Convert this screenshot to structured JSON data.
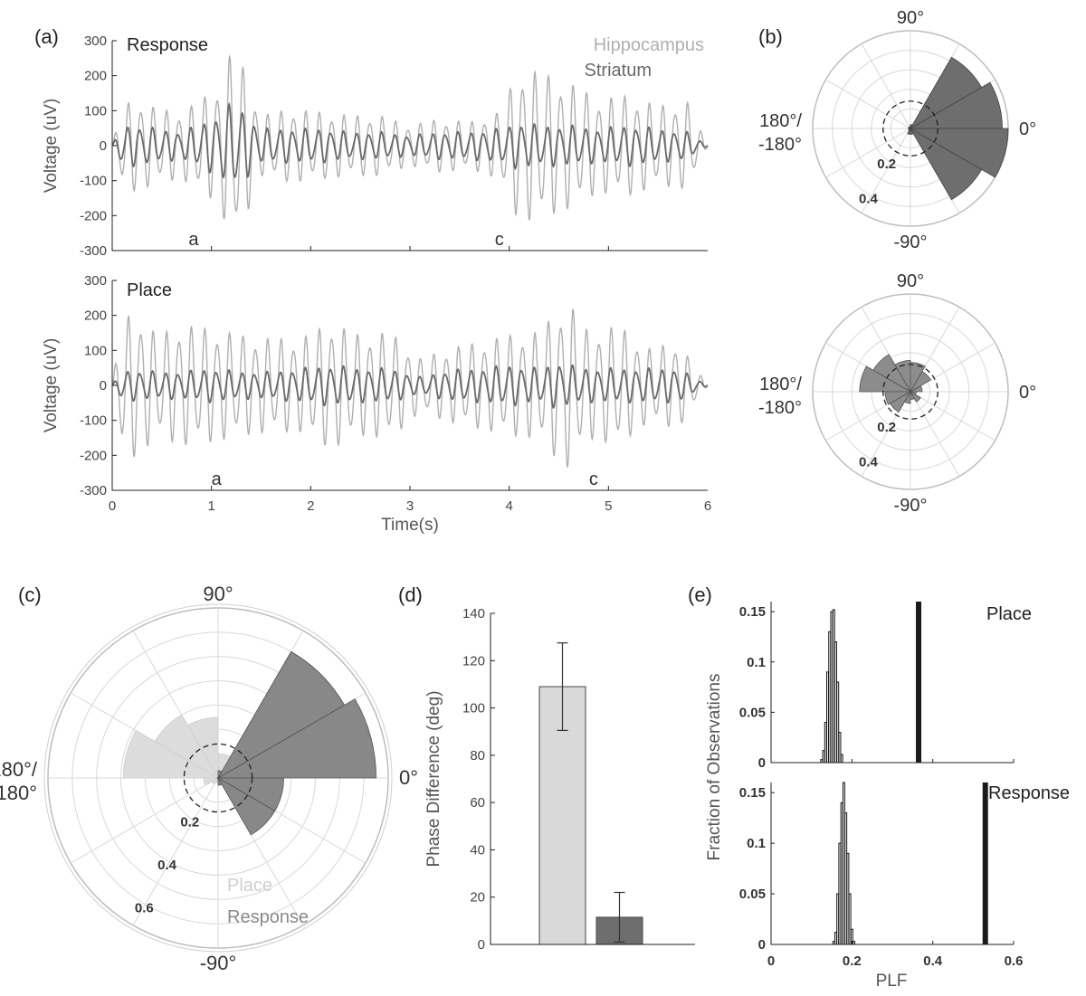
{
  "panel_labels": {
    "a": "(a)",
    "b": "(b)",
    "c": "(c)",
    "d": "(d)",
    "e": "(e)"
  },
  "colors": {
    "hippocampus": "#b0b0b0",
    "striatum": "#6a6a6a",
    "place": "#d9d9d9",
    "response": "#6e6e6e",
    "bars": "#1a1a1a"
  },
  "chart_data": [
    {
      "id": "a-response",
      "type": "line",
      "title": "Response",
      "ylabel": "Voltage (uV)",
      "xlim": [
        0,
        6
      ],
      "ylim": [
        -300,
        300
      ],
      "yticks": [
        300,
        200,
        100,
        0,
        -100,
        -200,
        -300
      ],
      "yticklabels": [
        "300",
        "200",
        "100",
        "0",
        "-100",
        "-200",
        "-300"
      ],
      "series": [
        {
          "name": "Hippocampus",
          "x": [
            0,
            0.1,
            0.25,
            0.45,
            0.7,
            1.0,
            1.1,
            1.2,
            1.3,
            1.5,
            1.8,
            2.1,
            2.4,
            2.7,
            3.0,
            3.3,
            3.6,
            3.9,
            4.1,
            4.3,
            4.6,
            4.9,
            5.2,
            5.5,
            5.8,
            6.0
          ],
          "values": [
            0,
            120,
            -140,
            110,
            -100,
            160,
            -200,
            285,
            -250,
            90,
            110,
            -100,
            90,
            -90,
            60,
            80,
            -70,
            100,
            230,
            -220,
            190,
            -140,
            150,
            -120,
            130,
            0
          ]
        },
        {
          "name": "Striatum",
          "x": [
            0,
            0.1,
            0.25,
            0.45,
            0.7,
            1.0,
            1.1,
            1.2,
            1.3,
            1.5,
            1.8,
            2.1,
            2.4,
            2.7,
            3.0,
            3.3,
            3.6,
            3.9,
            4.1,
            4.3,
            4.6,
            4.9,
            5.2,
            5.5,
            5.8,
            6.0
          ],
          "values": [
            0,
            60,
            -60,
            50,
            -40,
            80,
            -100,
            125,
            -110,
            50,
            50,
            -50,
            40,
            -40,
            30,
            40,
            -40,
            50,
            70,
            -60,
            60,
            -50,
            60,
            -50,
            40,
            0
          ]
        }
      ],
      "annotations": [
        {
          "text": "a",
          "x": 0.82
        },
        {
          "text": "c",
          "x": 3.9
        }
      ]
    },
    {
      "id": "a-place",
      "type": "line",
      "title": "Place",
      "ylabel": "Voltage (uV)",
      "xlabel": "Time(s)",
      "xlim": [
        0,
        6
      ],
      "ylim": [
        -300,
        300
      ],
      "xticks": [
        0,
        1,
        2,
        3,
        4,
        5,
        6
      ],
      "xticklabels": [
        "0",
        "1",
        "2",
        "3",
        "4",
        "5",
        "6"
      ],
      "yticks": [
        300,
        200,
        100,
        0,
        -100,
        -200,
        -300
      ],
      "yticklabels": [
        "300",
        "200",
        "100",
        "0",
        "-100",
        "-200",
        "-300"
      ],
      "series": [
        {
          "name": "Hippocampus",
          "x": [
            0,
            0.1,
            0.25,
            0.45,
            0.7,
            1.0,
            1.3,
            1.6,
            1.9,
            2.2,
            2.5,
            2.8,
            3.1,
            3.4,
            3.7,
            4.0,
            4.3,
            4.5,
            4.6,
            4.8,
            5.1,
            5.4,
            5.7,
            6.0
          ],
          "values": [
            0,
            200,
            -220,
            150,
            -180,
            170,
            -150,
            140,
            -140,
            190,
            -150,
            160,
            -80,
            110,
            -130,
            150,
            -160,
            230,
            -250,
            160,
            -180,
            110,
            -130,
            0
          ]
        },
        {
          "name": "Striatum",
          "x": [
            0,
            0.1,
            0.25,
            0.45,
            0.7,
            1.0,
            1.3,
            1.6,
            1.9,
            2.2,
            2.5,
            2.8,
            3.1,
            3.4,
            3.7,
            4.0,
            4.3,
            4.5,
            4.6,
            4.8,
            5.1,
            5.4,
            5.7,
            6.0
          ],
          "values": [
            0,
            45,
            -45,
            40,
            -40,
            50,
            -40,
            40,
            -50,
            60,
            -50,
            50,
            -25,
            45,
            -50,
            60,
            -50,
            70,
            -60,
            50,
            -50,
            50,
            -50,
            0
          ]
        }
      ],
      "annotations": [
        {
          "text": "a",
          "x": 1.05
        },
        {
          "text": "c",
          "x": 4.85
        }
      ]
    },
    {
      "id": "b-response",
      "type": "polar-histogram",
      "theta_labels": {
        "top": "90°",
        "right": "0°",
        "left_1": "180°/",
        "left_2": "-180°",
        "bottom": "-90°"
      },
      "r_labels": [
        "0.2",
        "0.4"
      ],
      "rmax": 0.5,
      "bins": [
        {
          "from": -60,
          "to": -30,
          "r": 0.42
        },
        {
          "from": -30,
          "to": 0,
          "r": 0.5
        },
        {
          "from": 0,
          "to": 30,
          "r": 0.47
        },
        {
          "from": 30,
          "to": 60,
          "r": 0.42
        },
        {
          "from": 60,
          "to": 90,
          "r": 0.02
        },
        {
          "from": 120,
          "to": 150,
          "r": 0.01
        },
        {
          "from": 150,
          "to": 180,
          "r": 0.01
        },
        {
          "from": -180,
          "to": -150,
          "r": 0.01
        },
        {
          "from": -150,
          "to": -120,
          "r": 0.01
        },
        {
          "from": -120,
          "to": -90,
          "r": 0.03
        },
        {
          "from": -90,
          "to": -60,
          "r": 0.03
        }
      ],
      "threshold_r": 0.14
    },
    {
      "id": "b-place",
      "type": "polar-histogram",
      "theta_labels": {
        "top": "90°",
        "right": "0°",
        "left_1": "180°/",
        "left_2": "-180°",
        "bottom": "-90°"
      },
      "r_labels": [
        "0.2",
        "0.4"
      ],
      "rmax": 0.5,
      "bins": [
        {
          "from": -30,
          "to": 0,
          "r": 0.03
        },
        {
          "from": 0,
          "to": 30,
          "r": 0.06
        },
        {
          "from": 30,
          "to": 60,
          "r": 0.12
        },
        {
          "from": 60,
          "to": 90,
          "r": 0.15
        },
        {
          "from": 90,
          "to": 120,
          "r": 0.16
        },
        {
          "from": 120,
          "to": 150,
          "r": 0.22
        },
        {
          "from": 150,
          "to": 180,
          "r": 0.26
        },
        {
          "from": -180,
          "to": -150,
          "r": 0.13
        },
        {
          "from": -150,
          "to": -120,
          "r": 0.12
        },
        {
          "from": -120,
          "to": -90,
          "r": 0.06
        },
        {
          "from": -90,
          "to": -60,
          "r": 0.04
        },
        {
          "from": -60,
          "to": -30,
          "r": 0.06
        }
      ],
      "threshold_r": 0.14
    },
    {
      "id": "c",
      "type": "polar-histogram",
      "theta_labels": {
        "top": "90°",
        "right": "0°",
        "left_1": "180°/",
        "left_2": "-180°",
        "bottom": "-90°"
      },
      "r_labels": [
        "0.2",
        "0.4",
        "0.6"
      ],
      "rmax": 0.7,
      "series": [
        {
          "name": "Place",
          "bins": [
            {
              "from": 0,
              "to": 30,
              "r": 0.27
            },
            {
              "from": 30,
              "to": 60,
              "r": 0.27
            },
            {
              "from": 60,
              "to": 90,
              "r": 0.1
            },
            {
              "from": 90,
              "to": 120,
              "r": 0.25
            },
            {
              "from": 120,
              "to": 150,
              "r": 0.3
            },
            {
              "from": 150,
              "to": 180,
              "r": 0.39
            },
            {
              "from": -180,
              "to": -150,
              "r": 0.06
            },
            {
              "from": -150,
              "to": -120,
              "r": 0.03
            },
            {
              "from": -120,
              "to": -90,
              "r": 0.02
            },
            {
              "from": -90,
              "to": -60,
              "r": 0.02
            },
            {
              "from": -60,
              "to": -30,
              "r": 0.03
            },
            {
              "from": -30,
              "to": 0,
              "r": 0.05
            }
          ]
        },
        {
          "name": "Response",
          "bins": [
            {
              "from": 0,
              "to": 30,
              "r": 0.65
            },
            {
              "from": 30,
              "to": 60,
              "r": 0.6
            },
            {
              "from": -30,
              "to": 0,
              "r": 0.27
            },
            {
              "from": -60,
              "to": -30,
              "r": 0.27
            },
            {
              "from": 60,
              "to": 90,
              "r": 0.03
            },
            {
              "from": -90,
              "to": -60,
              "r": 0.03
            }
          ]
        }
      ],
      "threshold_r": 0.14
    },
    {
      "id": "d",
      "type": "bar",
      "ylabel": "Phase Difference (deg)",
      "ylim": [
        0,
        140
      ],
      "yticks": [
        0,
        20,
        40,
        60,
        80,
        100,
        120,
        140
      ],
      "yticklabels": [
        "0",
        "20",
        "40",
        "60",
        "80",
        "100",
        "120",
        "140"
      ],
      "categories": [
        "Place",
        "Response"
      ],
      "values": [
        109,
        11.5
      ],
      "errors": [
        [
          90.5,
          127.5
        ],
        [
          1,
          22
        ]
      ]
    },
    {
      "id": "e-place",
      "type": "bar",
      "title": "Place",
      "xlim": [
        0,
        0.6
      ],
      "ylim": [
        0,
        0.16
      ],
      "yticks": [
        0,
        0.05,
        0.1,
        0.15
      ],
      "yticklabels": [
        "0",
        "0.05",
        "0.1",
        "0.15"
      ],
      "hist": {
        "x": [
          0.125,
          0.13,
          0.135,
          0.14,
          0.145,
          0.15,
          0.155,
          0.16,
          0.165,
          0.17,
          0.175
        ],
        "values": [
          0.003,
          0.012,
          0.04,
          0.09,
          0.13,
          0.15,
          0.152,
          0.12,
          0.08,
          0.03,
          0.008
        ]
      },
      "observed": 0.365
    },
    {
      "id": "e-response",
      "type": "bar",
      "title": "Response",
      "xlabel": "PLF",
      "xlim": [
        0,
        0.6
      ],
      "ylim": [
        0,
        0.16
      ],
      "xticks": [
        0,
        0.2,
        0.4,
        0.6
      ],
      "xticklabels": [
        "0",
        "0.2",
        "0.4",
        "0.6"
      ],
      "yticks": [
        0,
        0.05,
        0.1,
        0.15
      ],
      "yticklabels": [
        "0",
        "0.05",
        "0.1",
        "0.15"
      ],
      "hist": {
        "x": [
          0.155,
          0.16,
          0.165,
          0.17,
          0.175,
          0.18,
          0.185,
          0.19,
          0.195,
          0.2,
          0.205
        ],
        "values": [
          0.003,
          0.012,
          0.05,
          0.1,
          0.14,
          0.16,
          0.13,
          0.09,
          0.05,
          0.015,
          0.003
        ]
      },
      "observed": 0.53
    }
  ],
  "shared_ylabel_e": "Fraction of Observations"
}
